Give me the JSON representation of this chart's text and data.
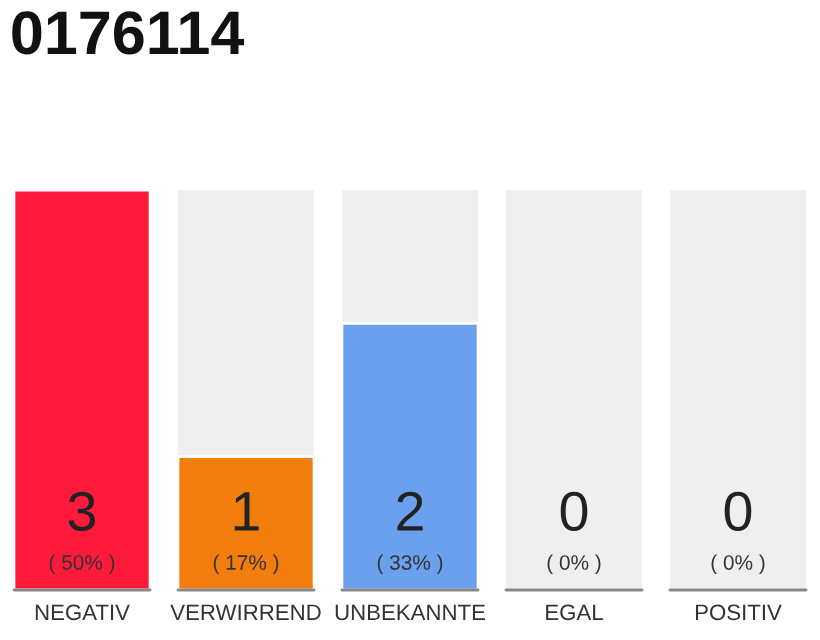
{
  "chart_data": {
    "type": "bar",
    "title": "0176114",
    "categories": [
      "NEGATIV",
      "VERWIRREND",
      "UNBEKANNTE",
      "EGAL",
      "POSITIV"
    ],
    "values": [
      3,
      1,
      2,
      0,
      0
    ],
    "colors": [
      "#ff1a3c",
      "#f07d0c",
      "#6aa0ee",
      null,
      null
    ],
    "ylim": [
      0,
      3
    ],
    "data_labels": true,
    "grid": false,
    "legend": false,
    "annotations": [
      "( 50% )",
      "( 17% )",
      "( 33% )",
      "( 0% )",
      "( 0% )"
    ]
  }
}
